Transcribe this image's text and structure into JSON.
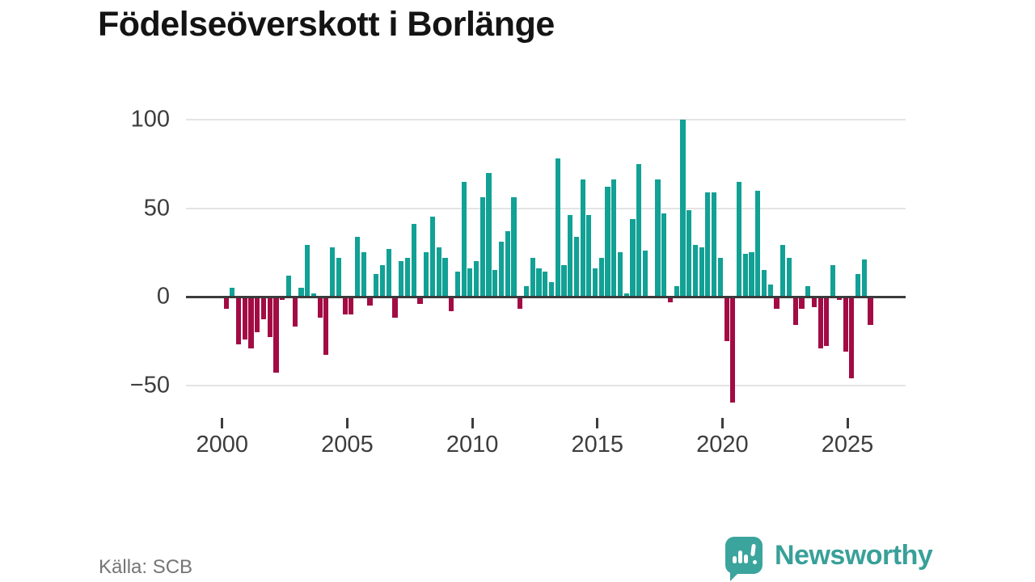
{
  "title": "Födelseöverskott i Borlänge",
  "source_label": "Källa: SCB",
  "branding": {
    "name": "Newsworthy",
    "icon": "newsworthy-speech-bubble-chart-icon"
  },
  "colors": {
    "positive_bar": "#12a195",
    "negative_bar": "#a30b44",
    "zero_line": "#3b3b3b",
    "gridline": "#e4e4e4",
    "axis_text": "#3d3d3d",
    "title_text": "#141414",
    "source_text": "#757575",
    "brand_teal": "#38a099"
  },
  "chart_data": {
    "type": "bar",
    "title": "Födelseöverskott i Borlänge",
    "frequency": "quarterly",
    "start_period": "2000-Q1",
    "end_period": "2025-Q4",
    "grid": "horizontal",
    "legend": "none",
    "y_ticks": [
      100,
      50,
      0,
      -50
    ],
    "ylim": [
      -65,
      105
    ],
    "x_tick_years": [
      "2000",
      "2005",
      "2010",
      "2015",
      "2020",
      "2025"
    ],
    "values": [
      -7,
      5,
      -27,
      -24,
      -29,
      -20,
      -13,
      -23,
      -43,
      -2,
      12,
      -17,
      5,
      29,
      2,
      -12,
      -33,
      28,
      22,
      -10,
      -10,
      34,
      25,
      -5,
      13,
      18,
      27,
      -12,
      20,
      22,
      41,
      -4,
      25,
      45,
      28,
      22,
      -8,
      14,
      65,
      16,
      20,
      56,
      70,
      15,
      31,
      37,
      56,
      -7,
      6,
      22,
      16,
      14,
      8,
      78,
      18,
      46,
      34,
      66,
      46,
      16,
      22,
      62,
      66,
      25,
      2,
      44,
      75,
      26,
      -1,
      66,
      47,
      -3,
      6,
      100,
      49,
      29,
      28,
      59,
      59,
      22,
      -25,
      -60,
      65,
      24,
      25,
      60,
      15,
      7,
      -7,
      29,
      22,
      -16,
      -7,
      6,
      -6,
      -29,
      -28,
      18,
      -2,
      -31,
      -46,
      13,
      21,
      -16
    ]
  }
}
